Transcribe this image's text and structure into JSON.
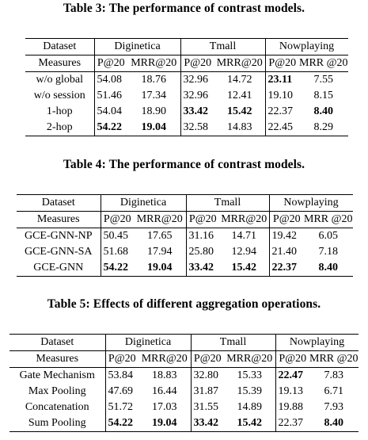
{
  "tables": [
    {
      "caption": "Table 3: The performance of contrast models.",
      "dataset_label": "Dataset",
      "measures_label": "Measures",
      "groups": [
        "Diginetica",
        "Tmall",
        "Nowplaying"
      ],
      "measures": [
        "P@20",
        "MRR@20",
        "P@20",
        "MRR@20",
        "P@20",
        "MRR @20"
      ],
      "rows": [
        {
          "name": "w/o global",
          "values": [
            "54.08",
            "18.76",
            "32.96",
            "14.72",
            "23.11",
            "7.55"
          ],
          "bold": [
            false,
            false,
            false,
            false,
            true,
            false
          ]
        },
        {
          "name": "w/o session",
          "values": [
            "51.46",
            "17.34",
            "32.96",
            "12.41",
            "19.10",
            "8.15"
          ],
          "bold": [
            false,
            false,
            false,
            false,
            false,
            false
          ]
        },
        {
          "name": "1-hop",
          "values": [
            "54.04",
            "18.90",
            "33.42",
            "15.42",
            "22.37",
            "8.40"
          ],
          "bold": [
            false,
            false,
            true,
            true,
            false,
            true
          ]
        },
        {
          "name": "2-hop",
          "values": [
            "54.22",
            "19.04",
            "32.58",
            "14.83",
            "22.45",
            "8.29"
          ],
          "bold": [
            true,
            true,
            false,
            false,
            false,
            false
          ]
        }
      ]
    },
    {
      "caption": "Table 4: The performance of contrast models.",
      "dataset_label": "Dataset",
      "measures_label": "Measures",
      "groups": [
        "Diginetica",
        "Tmall",
        "Nowplaying"
      ],
      "measures": [
        "P@20",
        "MRR@20",
        "P@20",
        "MRR@20",
        "P@20",
        "MRR @20"
      ],
      "rows": [
        {
          "name": "GCE-GNN-NP",
          "values": [
            "50.45",
            "17.65",
            "31.16",
            "14.71",
            "19.42",
            "6.05"
          ],
          "bold": [
            false,
            false,
            false,
            false,
            false,
            false
          ]
        },
        {
          "name": "GCE-GNN-SA",
          "values": [
            "51.68",
            "17.94",
            "25.80",
            "12.94",
            "21.40",
            "7.18"
          ],
          "bold": [
            false,
            false,
            false,
            false,
            false,
            false
          ]
        },
        {
          "name": "GCE-GNN",
          "values": [
            "54.22",
            "19.04",
            "33.42",
            "15.42",
            "22.37",
            "8.40"
          ],
          "bold": [
            true,
            true,
            true,
            true,
            true,
            true
          ]
        }
      ]
    },
    {
      "caption": "Table 5: Effects of different aggregation operations.",
      "dataset_label": "Dataset",
      "measures_label": "Measures",
      "groups": [
        "Diginetica",
        "Tmall",
        "Nowplaying"
      ],
      "measures": [
        "P@20",
        "MRR@20",
        "P@20",
        "MRR@20",
        "P@20",
        "MRR @20"
      ],
      "rows": [
        {
          "name": "Gate Mechanism",
          "values": [
            "53.84",
            "18.83",
            "32.80",
            "15.33",
            "22.47",
            "7.83"
          ],
          "bold": [
            false,
            false,
            false,
            false,
            true,
            false
          ]
        },
        {
          "name": "Max Pooling",
          "values": [
            "47.69",
            "16.44",
            "31.87",
            "15.39",
            "19.13",
            "6.71"
          ],
          "bold": [
            false,
            false,
            false,
            false,
            false,
            false
          ]
        },
        {
          "name": "Concatenation",
          "values": [
            "51.72",
            "17.03",
            "31.55",
            "14.89",
            "19.88",
            "7.93"
          ],
          "bold": [
            false,
            false,
            false,
            false,
            false,
            false
          ]
        },
        {
          "name": "Sum Pooling",
          "values": [
            "54.22",
            "19.04",
            "33.42",
            "15.42",
            "22.37",
            "8.40"
          ],
          "bold": [
            true,
            true,
            true,
            true,
            false,
            true
          ]
        }
      ]
    }
  ]
}
